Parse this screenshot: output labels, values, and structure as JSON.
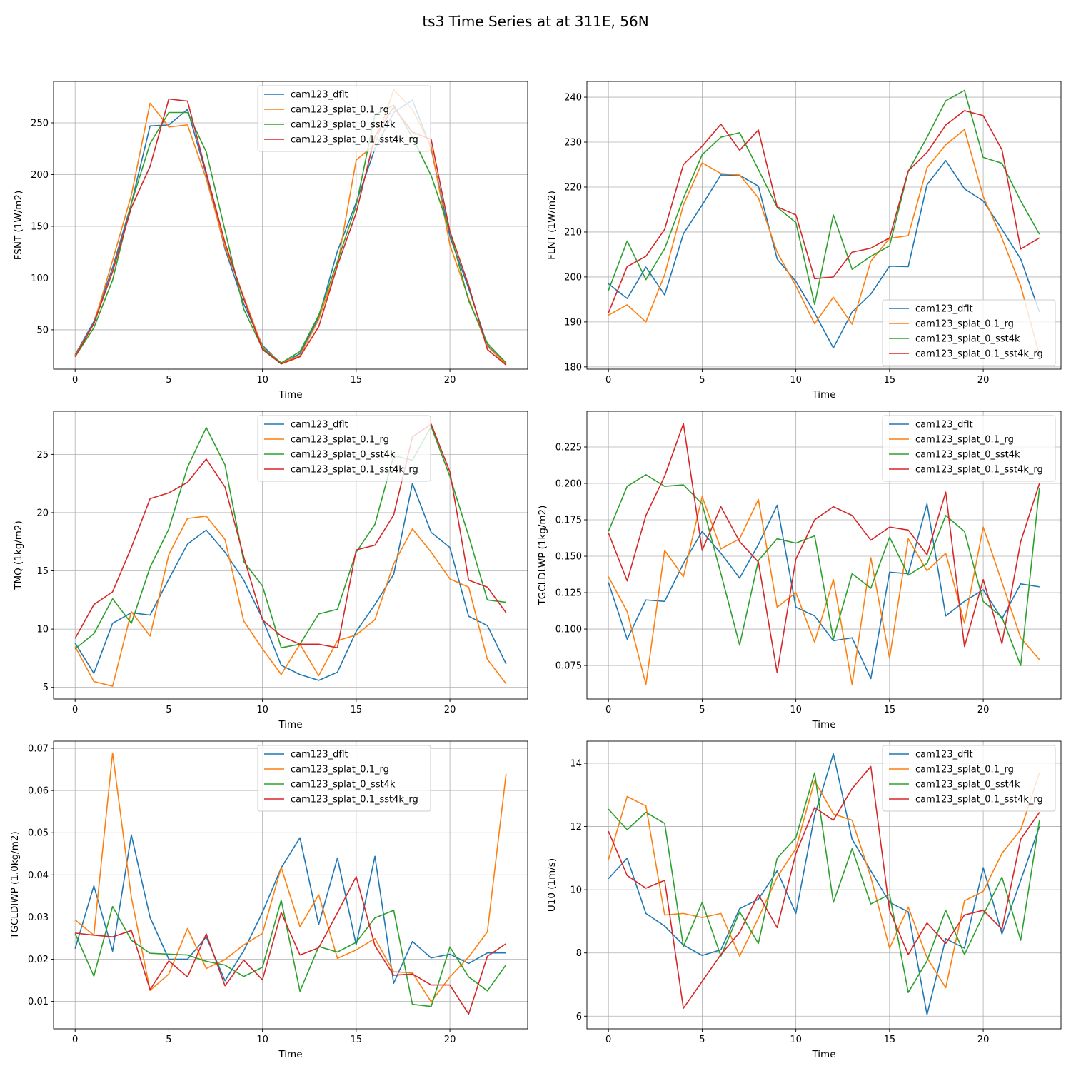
{
  "title": "ts3 Time Series at at 311E, 56N",
  "colors": {
    "cam123_dflt": "#1f77b4",
    "cam123_splat_0.1_rg": "#ff7f0e",
    "cam123_splat_0_sst4k": "#2ca02c",
    "cam123_splat_0.1_sst4k_rg": "#d62728"
  },
  "chart_data": [
    {
      "type": "line",
      "ylabel": "FSNT (1W/m2)",
      "xlabel": "Time",
      "xlim": [
        -1.15,
        24.15
      ],
      "ylim": [
        12,
        290
      ],
      "xticks": [
        0,
        5,
        10,
        15,
        20
      ],
      "yticks": [
        50,
        100,
        150,
        200,
        250
      ],
      "yticklabels": [
        "50",
        "100",
        "150",
        "200",
        "250"
      ],
      "grid": true,
      "legend_loc": "upper center",
      "series": [
        {
          "name": "cam123_dflt",
          "values": [
            26,
            58,
            110,
            172,
            247,
            248,
            263,
            200,
            128,
            75,
            35,
            17,
            27,
            62,
            126,
            173,
            225,
            260,
            272,
            225,
            140,
            90,
            35,
            17
          ]
        },
        {
          "name": "cam123_splat_0.1_rg",
          "values": [
            25,
            56,
            117,
            180,
            269,
            246,
            248,
            196,
            130,
            82,
            33,
            18,
            25,
            60,
            112,
            214,
            229,
            282,
            263,
            227,
            132,
            80,
            34,
            17
          ]
        },
        {
          "name": "cam123_splat_0_sst4k",
          "values": [
            24,
            52,
            98,
            172,
            230,
            260,
            260,
            222,
            146,
            70,
            32,
            18,
            29,
            64,
            116,
            170,
            258,
            267,
            236,
            199,
            145,
            78,
            37,
            18
          ]
        },
        {
          "name": "cam123_splat_0.1_sst4k_rg",
          "values": [
            24,
            56,
            106,
            168,
            208,
            273,
            271,
            202,
            134,
            80,
            31,
            17,
            24,
            53,
            112,
            163,
            237,
            265,
            241,
            234,
            145,
            93,
            31,
            16
          ]
        }
      ]
    },
    {
      "type": "line",
      "ylabel": "FLNT (1W/m2)",
      "xlabel": "Time",
      "xlim": [
        -1.15,
        24.15
      ],
      "ylim": [
        179.5,
        243.5
      ],
      "xticks": [
        0,
        5,
        10,
        15,
        20
      ],
      "yticks": [
        180,
        190,
        200,
        210,
        220,
        230,
        240
      ],
      "yticklabels": [
        "180",
        "190",
        "200",
        "210",
        "220",
        "230",
        "240"
      ],
      "grid": true,
      "legend_loc": "lower right",
      "series": [
        {
          "name": "cam123_dflt",
          "values": [
            198.5,
            195.2,
            202.2,
            196.0,
            209.6,
            216.0,
            222.7,
            222.6,
            220.2,
            204.0,
            199.0,
            192.0,
            184.2,
            192.2,
            196.2,
            202.4,
            202.3,
            220.5,
            225.9,
            219.6,
            216.9,
            210.6,
            204.0,
            192.2
          ]
        },
        {
          "name": "cam123_splat_0.1_rg",
          "values": [
            191.5,
            193.8,
            190.0,
            200.5,
            216.0,
            225.4,
            223.0,
            222.7,
            217.6,
            205.5,
            198.0,
            189.6,
            195.5,
            189.5,
            203.5,
            208.6,
            209.2,
            224.3,
            229.4,
            232.8,
            217.9,
            208.6,
            198.0,
            182.6
          ]
        },
        {
          "name": "cam123_splat_0_sst4k",
          "values": [
            197.0,
            208.0,
            199.4,
            206.3,
            217.5,
            227.2,
            231.1,
            232.1,
            223.9,
            215.5,
            212.1,
            193.9,
            213.8,
            201.7,
            204.6,
            206.9,
            223.5,
            231.1,
            239.2,
            241.5,
            226.6,
            225.3,
            216.9,
            209.5
          ]
        },
        {
          "name": "cam123_splat_0.1_sst4k_rg",
          "values": [
            192.0,
            202.3,
            204.6,
            210.6,
            225.0,
            229.1,
            234.0,
            228.2,
            232.7,
            215.6,
            213.8,
            199.6,
            200.0,
            205.5,
            206.4,
            208.7,
            223.6,
            227.7,
            233.8,
            237.0,
            235.9,
            228.3,
            206.2,
            208.7
          ]
        }
      ]
    },
    {
      "type": "line",
      "ylabel": "TMQ (1kg/m2)",
      "xlabel": "Time",
      "xlim": [
        -1.15,
        24.15
      ],
      "ylim": [
        4.0,
        28.7
      ],
      "xticks": [
        0,
        5,
        10,
        15,
        20
      ],
      "yticks": [
        5,
        10,
        15,
        20,
        25
      ],
      "yticklabels": [
        "5",
        "10",
        "15",
        "20",
        "25"
      ],
      "grid": true,
      "legend_loc": "upper center",
      "series": [
        {
          "name": "cam123_dflt",
          "values": [
            8.8,
            6.2,
            10.5,
            11.4,
            11.2,
            14.3,
            17.3,
            18.5,
            16.6,
            14.2,
            10.9,
            6.9,
            6.1,
            5.6,
            6.3,
            9.8,
            12.1,
            14.7,
            22.5,
            18.3,
            17.0,
            11.1,
            10.3,
            7.0
          ]
        },
        {
          "name": "cam123_splat_0.1_rg",
          "values": [
            8.5,
            5.5,
            5.1,
            11.5,
            9.4,
            16.4,
            19.5,
            19.7,
            17.7,
            10.7,
            8.3,
            6.1,
            8.7,
            6.0,
            9.0,
            9.5,
            10.8,
            15.6,
            18.6,
            16.6,
            14.3,
            13.6,
            7.4,
            5.3
          ]
        },
        {
          "name": "cam123_splat_0_sst4k",
          "values": [
            8.3,
            9.6,
            12.6,
            10.5,
            15.3,
            18.6,
            23.9,
            27.3,
            24.1,
            15.8,
            13.7,
            8.4,
            8.7,
            11.3,
            11.7,
            16.6,
            19.0,
            24.9,
            24.5,
            27.4,
            23.1,
            18.0,
            12.5,
            12.3
          ]
        },
        {
          "name": "cam123_splat_0.1_sst4k_rg",
          "values": [
            9.2,
            12.1,
            13.2,
            17.0,
            21.2,
            21.7,
            22.6,
            24.6,
            22.2,
            16.2,
            10.8,
            9.4,
            8.7,
            8.7,
            8.4,
            16.8,
            17.2,
            19.8,
            26.5,
            27.6,
            23.5,
            14.2,
            13.6,
            11.4
          ]
        }
      ]
    },
    {
      "type": "line",
      "ylabel": "TGCLDLWP (1kg/m2)",
      "xlabel": "Time",
      "xlim": [
        -1.15,
        24.15
      ],
      "ylim": [
        0.052,
        0.2495
      ],
      "xticks": [
        0,
        5,
        10,
        15,
        20
      ],
      "yticks": [
        0.075,
        0.1,
        0.125,
        0.15,
        0.175,
        0.2,
        0.225
      ],
      "yticklabels": [
        "0.075",
        "0.100",
        "0.125",
        "0.150",
        "0.175",
        "0.200",
        "0.225"
      ],
      "grid": true,
      "legend_loc": "upper right",
      "series": [
        {
          "name": "cam123_dflt",
          "values": [
            0.132,
            0.093,
            0.12,
            0.119,
            0.145,
            0.167,
            0.152,
            0.135,
            0.158,
            0.185,
            0.115,
            0.109,
            0.092,
            0.094,
            0.066,
            0.139,
            0.138,
            0.186,
            0.109,
            0.119,
            0.127,
            0.107,
            0.131,
            0.129
          ]
        },
        {
          "name": "cam123_splat_0.1_rg",
          "values": [
            0.136,
            0.112,
            0.062,
            0.154,
            0.136,
            0.191,
            0.155,
            0.162,
            0.189,
            0.115,
            0.125,
            0.091,
            0.134,
            0.062,
            0.149,
            0.08,
            0.162,
            0.14,
            0.152,
            0.104,
            0.17,
            0.132,
            0.094,
            0.079
          ]
        },
        {
          "name": "cam123_splat_0_sst4k",
          "values": [
            0.167,
            0.198,
            0.206,
            0.198,
            0.199,
            0.186,
            0.138,
            0.089,
            0.147,
            0.162,
            0.159,
            0.164,
            0.093,
            0.138,
            0.128,
            0.163,
            0.137,
            0.145,
            0.178,
            0.167,
            0.119,
            0.108,
            0.075,
            0.197
          ]
        },
        {
          "name": "cam123_splat_0.1_sst4k_rg",
          "values": [
            0.166,
            0.133,
            0.178,
            0.205,
            0.241,
            0.154,
            0.184,
            0.16,
            0.146,
            0.07,
            0.148,
            0.175,
            0.184,
            0.178,
            0.161,
            0.17,
            0.168,
            0.151,
            0.194,
            0.088,
            0.134,
            0.09,
            0.16,
            0.2
          ]
        }
      ]
    },
    {
      "type": "line",
      "ylabel": "TGCLDIWP (1.0kg/m2)",
      "xlabel": "Time",
      "xlim": [
        -1.15,
        24.15
      ],
      "ylim": [
        0.0035,
        0.0717
      ],
      "xticks": [
        0,
        5,
        10,
        15,
        20
      ],
      "yticks": [
        0.01,
        0.02,
        0.03,
        0.04,
        0.05,
        0.06,
        0.07
      ],
      "yticklabels": [
        "0.01",
        "0.02",
        "0.03",
        "0.04",
        "0.05",
        "0.06",
        "0.07"
      ],
      "grid": true,
      "legend_loc": "upper center",
      "series": [
        {
          "name": "cam123_dflt",
          "values": [
            0.0225,
            0.0374,
            0.0219,
            0.0495,
            0.0299,
            0.02,
            0.02,
            0.0253,
            0.0149,
            0.022,
            0.0311,
            0.0417,
            0.0488,
            0.0282,
            0.044,
            0.0234,
            0.0444,
            0.0143,
            0.0242,
            0.0203,
            0.0212,
            0.019,
            0.0215,
            0.0215
          ]
        },
        {
          "name": "cam123_splat_0.1_rg",
          "values": [
            0.0293,
            0.0257,
            0.0689,
            0.0347,
            0.0126,
            0.0165,
            0.0273,
            0.0178,
            0.0199,
            0.0234,
            0.0261,
            0.0418,
            0.0277,
            0.0353,
            0.0202,
            0.0222,
            0.0249,
            0.017,
            0.0168,
            0.0099,
            0.0158,
            0.0205,
            0.0265,
            0.064
          ]
        },
        {
          "name": "cam123_splat_0_sst4k",
          "values": [
            0.0261,
            0.016,
            0.0325,
            0.0245,
            0.0214,
            0.0212,
            0.021,
            0.0195,
            0.0186,
            0.0159,
            0.0181,
            0.034,
            0.0124,
            0.023,
            0.0217,
            0.024,
            0.0298,
            0.0316,
            0.0093,
            0.0088,
            0.0229,
            0.0158,
            0.0125,
            0.0187
          ]
        },
        {
          "name": "cam123_splat_0.1_sst4k_rg",
          "values": [
            0.0262,
            0.0257,
            0.0253,
            0.0268,
            0.0128,
            0.0196,
            0.0158,
            0.026,
            0.0137,
            0.0198,
            0.0151,
            0.0311,
            0.021,
            0.0227,
            0.031,
            0.0396,
            0.0232,
            0.0162,
            0.0165,
            0.0139,
            0.0139,
            0.007,
            0.0207,
            0.0237
          ]
        }
      ]
    },
    {
      "type": "line",
      "ylabel": "U10 (1m/s)",
      "xlabel": "Time",
      "xlim": [
        -1.15,
        24.15
      ],
      "ylim": [
        5.6,
        14.7
      ],
      "xticks": [
        0,
        5,
        10,
        15,
        20
      ],
      "yticks": [
        6,
        8,
        10,
        12,
        14
      ],
      "yticklabels": [
        "6",
        "8",
        "10",
        "12",
        "14"
      ],
      "grid": true,
      "legend_loc": "upper right",
      "series": [
        {
          "name": "cam123_dflt",
          "values": [
            10.35,
            11.0,
            9.25,
            8.85,
            8.25,
            7.92,
            8.1,
            9.4,
            9.7,
            10.6,
            9.25,
            12.35,
            14.3,
            11.6,
            10.6,
            9.6,
            9.3,
            6.05,
            8.45,
            8.15,
            10.7,
            8.6,
            10.3,
            12.0
          ]
        },
        {
          "name": "cam123_splat_0.1_rg",
          "values": [
            10.95,
            12.95,
            12.65,
            9.2,
            9.25,
            9.12,
            9.25,
            7.9,
            9.1,
            10.4,
            11.3,
            13.45,
            12.4,
            12.2,
            10.4,
            8.15,
            9.45,
            7.85,
            6.9,
            9.65,
            9.95,
            11.15,
            11.9,
            13.7
          ]
        },
        {
          "name": "cam123_splat_0_sst4k",
          "values": [
            12.55,
            11.9,
            12.45,
            12.1,
            8.2,
            9.6,
            7.9,
            9.3,
            8.3,
            11.0,
            11.65,
            13.7,
            9.6,
            11.3,
            9.55,
            9.85,
            6.75,
            7.75,
            9.35,
            7.95,
            9.2,
            10.4,
            8.4,
            12.2
          ]
        },
        {
          "name": "cam123_splat_0.1_sst4k_rg",
          "values": [
            11.85,
            10.45,
            10.05,
            10.3,
            6.25,
            7.1,
            7.95,
            8.65,
            9.85,
            8.8,
            11.15,
            12.6,
            12.2,
            13.2,
            13.9,
            9.35,
            7.95,
            8.95,
            8.3,
            9.2,
            9.35,
            8.75,
            11.6,
            12.45
          ]
        }
      ]
    }
  ]
}
